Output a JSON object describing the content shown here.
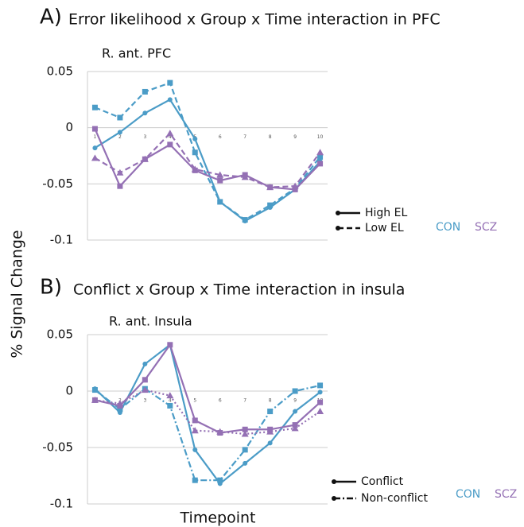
{
  "ylabel": "% Signal Change",
  "xlabel": "Timepoint",
  "chart_data": [
    {
      "type": "line",
      "panel": "A)",
      "title": "Error likelihood x Group x Time interaction in PFC",
      "subtitle": "R. ant. PFC",
      "x": [
        1,
        2,
        3,
        4,
        5,
        6,
        7,
        8,
        9,
        10
      ],
      "xlim": [
        0.7,
        10.3
      ],
      "xticks": [
        1,
        2,
        3,
        4,
        5,
        6,
        7,
        8,
        9,
        10
      ],
      "ylim": [
        -0.1,
        0.05
      ],
      "yticks": [
        0.05,
        0,
        -0.05,
        -0.1
      ],
      "grid": true,
      "series": [
        {
          "group": "CON",
          "name": "High EL",
          "color": "#4b9cc7",
          "dash": "solid",
          "marker": "circle",
          "values": [
            -0.018,
            -0.004,
            0.013,
            0.025,
            -0.01,
            -0.066,
            -0.083,
            -0.071,
            -0.055,
            -0.03
          ]
        },
        {
          "group": "CON",
          "name": "Low EL",
          "color": "#4b9cc7",
          "dash": "dashed",
          "marker": "square",
          "values": [
            0.018,
            0.009,
            0.032,
            0.04,
            -0.022,
            -0.066,
            -0.082,
            -0.069,
            -0.054,
            -0.026
          ]
        },
        {
          "group": "SCZ",
          "name": "High EL",
          "color": "#9470b4",
          "dash": "solid",
          "marker": "square",
          "values": [
            -0.001,
            -0.052,
            -0.028,
            -0.015,
            -0.038,
            -0.047,
            -0.042,
            -0.053,
            -0.055,
            -0.032
          ]
        },
        {
          "group": "SCZ",
          "name": "Low EL",
          "color": "#9470b4",
          "dash": "dashed",
          "marker": "triangle",
          "values": [
            -0.027,
            -0.04,
            -0.028,
            -0.005,
            -0.037,
            -0.042,
            -0.044,
            -0.053,
            -0.052,
            -0.022
          ]
        }
      ]
    },
    {
      "type": "line",
      "panel": "B)",
      "title": "Conflict x Group x Time interaction in insula",
      "subtitle": "R. ant. Insula",
      "x": [
        1,
        2,
        3,
        4,
        5,
        6,
        7,
        8,
        9,
        10
      ],
      "xlim": [
        0.7,
        10.3
      ],
      "xticks": [
        1,
        2,
        3,
        4,
        5,
        6,
        7,
        8,
        9,
        10
      ],
      "ylim": [
        -0.1,
        0.05
      ],
      "yticks": [
        0.05,
        0,
        -0.05,
        -0.1
      ],
      "grid": true,
      "series": [
        {
          "group": "CON",
          "name": "Conflict",
          "color": "#4b9cc7",
          "dash": "solid",
          "marker": "circle",
          "values": [
            0.002,
            -0.019,
            0.024,
            0.041,
            -0.052,
            -0.082,
            -0.064,
            -0.046,
            -0.018,
            -0.001
          ]
        },
        {
          "group": "CON",
          "name": "Non-conflict",
          "color": "#4b9cc7",
          "dash": "dashdot",
          "marker": "square",
          "values": [
            0.001,
            -0.016,
            0.002,
            -0.013,
            -0.079,
            -0.079,
            -0.052,
            -0.018,
            0,
            0.005
          ]
        },
        {
          "group": "SCZ",
          "name": "Conflict",
          "color": "#9470b4",
          "dash": "solid",
          "marker": "square",
          "values": [
            -0.008,
            -0.013,
            0.01,
            0.041,
            -0.026,
            -0.037,
            -0.034,
            -0.034,
            -0.03,
            -0.01
          ]
        },
        {
          "group": "SCZ",
          "name": "Non-conflict",
          "color": "#9470b4",
          "dash": "dotted",
          "marker": "triangle",
          "values": [
            -0.008,
            -0.011,
            0.001,
            -0.004,
            -0.035,
            -0.036,
            -0.038,
            -0.036,
            -0.033,
            -0.018
          ]
        }
      ]
    }
  ]
}
